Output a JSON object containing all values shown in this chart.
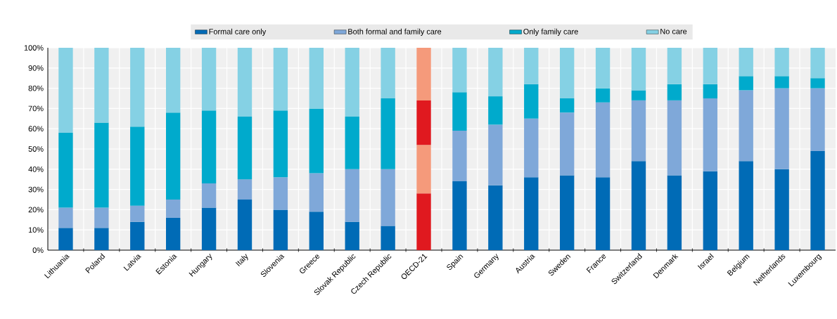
{
  "chart_data": {
    "type": "bar",
    "stacked": true,
    "grid": true,
    "legend": "top",
    "categories": [
      "Lithuania",
      "Poland",
      "Latvia",
      "Estonia",
      "Hungary",
      "Italy",
      "Slovenia",
      "Greece",
      "Slovak Republic",
      "Czech Republic",
      "OECD-21",
      "Spain",
      "Germany",
      "Austria",
      "Sweden",
      "France",
      "Switzerland",
      "Denmark",
      "Israel",
      "Belgium",
      "Netherlands",
      "Luxembourg"
    ],
    "ylim": [
      0,
      100
    ],
    "yticks": [
      {
        "value": 0,
        "label": "0%"
      },
      {
        "value": 10,
        "label": "10%"
      },
      {
        "value": 20,
        "label": "20%"
      },
      {
        "value": 30,
        "label": "30%"
      },
      {
        "value": 40,
        "label": "40%"
      },
      {
        "value": 50,
        "label": "50%"
      },
      {
        "value": 60,
        "label": "60%"
      },
      {
        "value": 70,
        "label": "70%"
      },
      {
        "value": 80,
        "label": "80%"
      },
      {
        "value": 90,
        "label": "90%"
      },
      {
        "value": 100,
        "label": "100%"
      }
    ],
    "series": [
      {
        "name": "Formal care only",
        "color": "#006bb6",
        "colors": [
          "#006bb6",
          "#006bb6",
          "#006bb6",
          "#006bb6",
          "#006bb6",
          "#006bb6",
          "#006bb6",
          "#006bb6",
          "#006bb6",
          "#006bb6",
          "#e0191f",
          "#006bb6",
          "#006bb6",
          "#006bb6",
          "#006bb6",
          "#006bb6",
          "#006bb6",
          "#006bb6",
          "#006bb6",
          "#006bb6",
          "#006bb6",
          "#006bb6"
        ],
        "values": [
          11,
          11,
          14,
          16,
          21,
          25,
          20,
          19,
          14,
          12,
          28,
          34,
          32,
          36,
          37,
          36,
          44,
          37,
          39,
          44,
          40,
          49
        ]
      },
      {
        "name": "Both formal and family care",
        "color": "#7fa8d9",
        "colors": [
          "#7fa8d9",
          "#7fa8d9",
          "#7fa8d9",
          "#7fa8d9",
          "#7fa8d9",
          "#7fa8d9",
          "#7fa8d9",
          "#7fa8d9",
          "#7fa8d9",
          "#7fa8d9",
          "#f59a7b",
          "#7fa8d9",
          "#7fa8d9",
          "#7fa8d9",
          "#7fa8d9",
          "#7fa8d9",
          "#7fa8d9",
          "#7fa8d9",
          "#7fa8d9",
          "#7fa8d9",
          "#7fa8d9",
          "#7fa8d9"
        ],
        "values": [
          10,
          10,
          8,
          9,
          12,
          10,
          16,
          19,
          26,
          28,
          24,
          25,
          30,
          29,
          31,
          37,
          30,
          37,
          36,
          35,
          40,
          31
        ]
      },
      {
        "name": "Only family care",
        "color": "#00aacc",
        "colors": [
          "#00aacc",
          "#00aacc",
          "#00aacc",
          "#00aacc",
          "#00aacc",
          "#00aacc",
          "#00aacc",
          "#00aacc",
          "#00aacc",
          "#00aacc",
          "#e0191f",
          "#00aacc",
          "#00aacc",
          "#00aacc",
          "#00aacc",
          "#00aacc",
          "#00aacc",
          "#00aacc",
          "#00aacc",
          "#00aacc",
          "#00aacc",
          "#00aacc"
        ],
        "values": [
          37,
          42,
          39,
          43,
          36,
          31,
          33,
          32,
          26,
          35,
          22,
          19,
          14,
          17,
          7,
          7,
          5,
          8,
          7,
          7,
          6,
          5
        ]
      },
      {
        "name": "No care",
        "color": "#85d1e4",
        "colors": [
          "#85d1e4",
          "#85d1e4",
          "#85d1e4",
          "#85d1e4",
          "#85d1e4",
          "#85d1e4",
          "#85d1e4",
          "#85d1e4",
          "#85d1e4",
          "#85d1e4",
          "#f59a7b",
          "#85d1e4",
          "#85d1e4",
          "#85d1e4",
          "#85d1e4",
          "#85d1e4",
          "#85d1e4",
          "#85d1e4",
          "#85d1e4",
          "#85d1e4",
          "#85d1e4",
          "#85d1e4"
        ],
        "values": [
          42,
          37,
          39,
          32,
          31,
          34,
          31,
          30,
          34,
          25,
          26,
          22,
          24,
          18,
          25,
          20,
          21,
          18,
          18,
          14,
          14,
          15
        ]
      }
    ]
  }
}
